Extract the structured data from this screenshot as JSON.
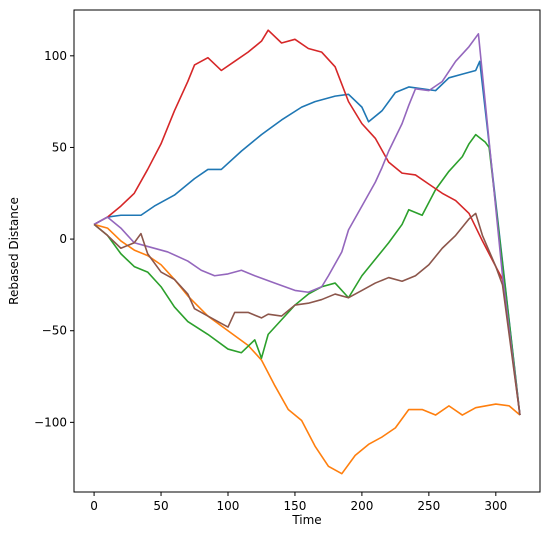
{
  "chart_data": {
    "type": "line",
    "title": "",
    "xlabel": "Time",
    "ylabel": "Rebased Distance",
    "xlim": [
      -15,
      333
    ],
    "ylim": [
      -138,
      125
    ],
    "xticks": [
      0,
      50,
      100,
      150,
      200,
      250,
      300
    ],
    "yticks": [
      -100,
      -50,
      0,
      50,
      100
    ],
    "xtick_labels": [
      "0",
      "50",
      "100",
      "150",
      "200",
      "250",
      "300"
    ],
    "ytick_labels": [
      "−100",
      "−50",
      "0",
      "50",
      "100"
    ],
    "grid": false,
    "legend": false,
    "series": [
      {
        "color": "#1f77b4",
        "points": [
          [
            0,
            8
          ],
          [
            10,
            12
          ],
          [
            20,
            13
          ],
          [
            35,
            13
          ],
          [
            45,
            18
          ],
          [
            60,
            24
          ],
          [
            75,
            33
          ],
          [
            85,
            38
          ],
          [
            95,
            38
          ],
          [
            110,
            48
          ],
          [
            125,
            57
          ],
          [
            140,
            65
          ],
          [
            155,
            72
          ],
          [
            165,
            75
          ],
          [
            180,
            78
          ],
          [
            190,
            79
          ],
          [
            200,
            72
          ],
          [
            205,
            64
          ],
          [
            215,
            70
          ],
          [
            225,
            80
          ],
          [
            235,
            83
          ],
          [
            245,
            82
          ],
          [
            255,
            81
          ],
          [
            265,
            88
          ],
          [
            275,
            90
          ],
          [
            285,
            92
          ],
          [
            288,
            97
          ],
          [
            318,
            -96
          ]
        ]
      },
      {
        "color": "#ff7f0e",
        "points": [
          [
            0,
            8
          ],
          [
            10,
            6
          ],
          [
            20,
            -1
          ],
          [
            30,
            -6
          ],
          [
            40,
            -9
          ],
          [
            50,
            -14
          ],
          [
            60,
            -22
          ],
          [
            70,
            -31
          ],
          [
            85,
            -42
          ],
          [
            100,
            -50
          ],
          [
            115,
            -58
          ],
          [
            125,
            -66
          ],
          [
            135,
            -80
          ],
          [
            145,
            -93
          ],
          [
            155,
            -99
          ],
          [
            165,
            -113
          ],
          [
            175,
            -124
          ],
          [
            185,
            -128
          ],
          [
            195,
            -118
          ],
          [
            205,
            -112
          ],
          [
            215,
            -108
          ],
          [
            225,
            -103
          ],
          [
            235,
            -93
          ],
          [
            245,
            -93
          ],
          [
            255,
            -96
          ],
          [
            265,
            -91
          ],
          [
            275,
            -96
          ],
          [
            285,
            -92
          ],
          [
            300,
            -90
          ],
          [
            310,
            -91
          ],
          [
            318,
            -96
          ]
        ]
      },
      {
        "color": "#2ca02c",
        "points": [
          [
            0,
            8
          ],
          [
            10,
            2
          ],
          [
            20,
            -8
          ],
          [
            30,
            -15
          ],
          [
            40,
            -18
          ],
          [
            50,
            -26
          ],
          [
            60,
            -37
          ],
          [
            70,
            -45
          ],
          [
            85,
            -52
          ],
          [
            100,
            -60
          ],
          [
            110,
            -62
          ],
          [
            120,
            -55
          ],
          [
            125,
            -65
          ],
          [
            130,
            -52
          ],
          [
            140,
            -44
          ],
          [
            150,
            -36
          ],
          [
            160,
            -30
          ],
          [
            170,
            -26
          ],
          [
            180,
            -24
          ],
          [
            190,
            -32
          ],
          [
            200,
            -20
          ],
          [
            210,
            -11
          ],
          [
            220,
            -2
          ],
          [
            230,
            8
          ],
          [
            235,
            16
          ],
          [
            245,
            13
          ],
          [
            255,
            27
          ],
          [
            265,
            37
          ],
          [
            275,
            45
          ],
          [
            280,
            52
          ],
          [
            285,
            57
          ],
          [
            292,
            53
          ],
          [
            295,
            50
          ],
          [
            318,
            -96
          ]
        ]
      },
      {
        "color": "#d62728",
        "points": [
          [
            0,
            8
          ],
          [
            10,
            12
          ],
          [
            20,
            18
          ],
          [
            30,
            25
          ],
          [
            40,
            38
          ],
          [
            50,
            52
          ],
          [
            60,
            70
          ],
          [
            70,
            86
          ],
          [
            75,
            95
          ],
          [
            85,
            99
          ],
          [
            95,
            92
          ],
          [
            105,
            97
          ],
          [
            115,
            102
          ],
          [
            125,
            108
          ],
          [
            130,
            114
          ],
          [
            140,
            107
          ],
          [
            150,
            109
          ],
          [
            160,
            104
          ],
          [
            170,
            102
          ],
          [
            180,
            94
          ],
          [
            190,
            75
          ],
          [
            200,
            63
          ],
          [
            210,
            55
          ],
          [
            220,
            42
          ],
          [
            230,
            36
          ],
          [
            240,
            35
          ],
          [
            250,
            30
          ],
          [
            260,
            25
          ],
          [
            270,
            21
          ],
          [
            280,
            14
          ],
          [
            290,
            -1
          ],
          [
            300,
            -15
          ],
          [
            305,
            -22
          ],
          [
            318,
            -96
          ]
        ]
      },
      {
        "color": "#9467bd",
        "points": [
          [
            0,
            8
          ],
          [
            10,
            12
          ],
          [
            20,
            6
          ],
          [
            30,
            -2
          ],
          [
            40,
            -4
          ],
          [
            55,
            -7
          ],
          [
            70,
            -12
          ],
          [
            80,
            -17
          ],
          [
            90,
            -20
          ],
          [
            100,
            -19
          ],
          [
            110,
            -17
          ],
          [
            120,
            -20
          ],
          [
            135,
            -24
          ],
          [
            150,
            -28
          ],
          [
            160,
            -29
          ],
          [
            170,
            -26
          ],
          [
            175,
            -20
          ],
          [
            185,
            -7
          ],
          [
            190,
            5
          ],
          [
            200,
            18
          ],
          [
            210,
            31
          ],
          [
            215,
            39
          ],
          [
            220,
            48
          ],
          [
            230,
            63
          ],
          [
            235,
            73
          ],
          [
            240,
            82
          ],
          [
            250,
            81
          ],
          [
            260,
            86
          ],
          [
            270,
            97
          ],
          [
            280,
            105
          ],
          [
            287,
            112
          ],
          [
            305,
            -20
          ],
          [
            318,
            -96
          ]
        ]
      },
      {
        "color": "#8c564b",
        "points": [
          [
            0,
            8
          ],
          [
            10,
            2
          ],
          [
            20,
            -5
          ],
          [
            30,
            -2
          ],
          [
            35,
            3
          ],
          [
            40,
            -8
          ],
          [
            50,
            -18
          ],
          [
            60,
            -22
          ],
          [
            70,
            -30
          ],
          [
            75,
            -38
          ],
          [
            85,
            -42
          ],
          [
            95,
            -46
          ],
          [
            100,
            -48
          ],
          [
            105,
            -40
          ],
          [
            115,
            -40
          ],
          [
            125,
            -43
          ],
          [
            130,
            -41
          ],
          [
            140,
            -42
          ],
          [
            150,
            -36
          ],
          [
            160,
            -35
          ],
          [
            170,
            -33
          ],
          [
            180,
            -30
          ],
          [
            190,
            -32
          ],
          [
            200,
            -28
          ],
          [
            210,
            -24
          ],
          [
            220,
            -21
          ],
          [
            230,
            -23
          ],
          [
            240,
            -20
          ],
          [
            250,
            -14
          ],
          [
            260,
            -5
          ],
          [
            270,
            2
          ],
          [
            280,
            11
          ],
          [
            285,
            14
          ],
          [
            290,
            2
          ],
          [
            300,
            -15
          ],
          [
            305,
            -25
          ],
          [
            318,
            -96
          ]
        ]
      }
    ]
  }
}
